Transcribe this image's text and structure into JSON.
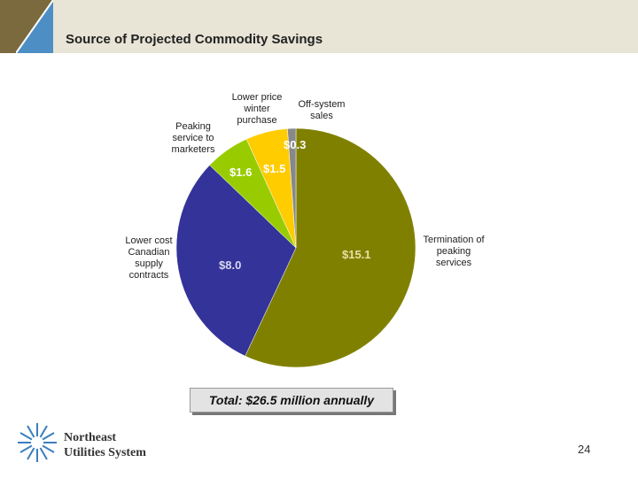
{
  "slide": {
    "title": "Source of Projected Commodity Savings",
    "page_number": "24",
    "total_label": "Total:  $26.5 million annually",
    "logo": {
      "line1": "Northeast",
      "line2": "Utilities System"
    }
  },
  "colors": {
    "header_bg": "#e8e4d6",
    "header_accent": "#7a6a3e",
    "slice_termination": "#808000",
    "slice_canadian": "#333399",
    "slice_peaking": "#99cc00",
    "slice_winter": "#ffcc00",
    "slice_offsystem": "#888888"
  },
  "chart_data": {
    "type": "pie",
    "slices": [
      {
        "label": "Termination of peaking services",
        "value": 15.1,
        "value_label": "$15.1",
        "color": "#808000"
      },
      {
        "label": "Lower cost Canadian supply contracts",
        "value": 8.0,
        "value_label": "$8.0",
        "color": "#333399"
      },
      {
        "label": "Peaking service to marketers",
        "value": 1.6,
        "value_label": "$1.6",
        "color": "#99cc00"
      },
      {
        "label": "Lower price winter purchase",
        "value": 1.5,
        "value_label": "$1.5",
        "color": "#ffcc00"
      },
      {
        "label": "Off-system sales",
        "value": 0.3,
        "value_label": "$0.3",
        "color": "#888888"
      }
    ],
    "start": "12 o'clock",
    "direction": "clockwise"
  }
}
